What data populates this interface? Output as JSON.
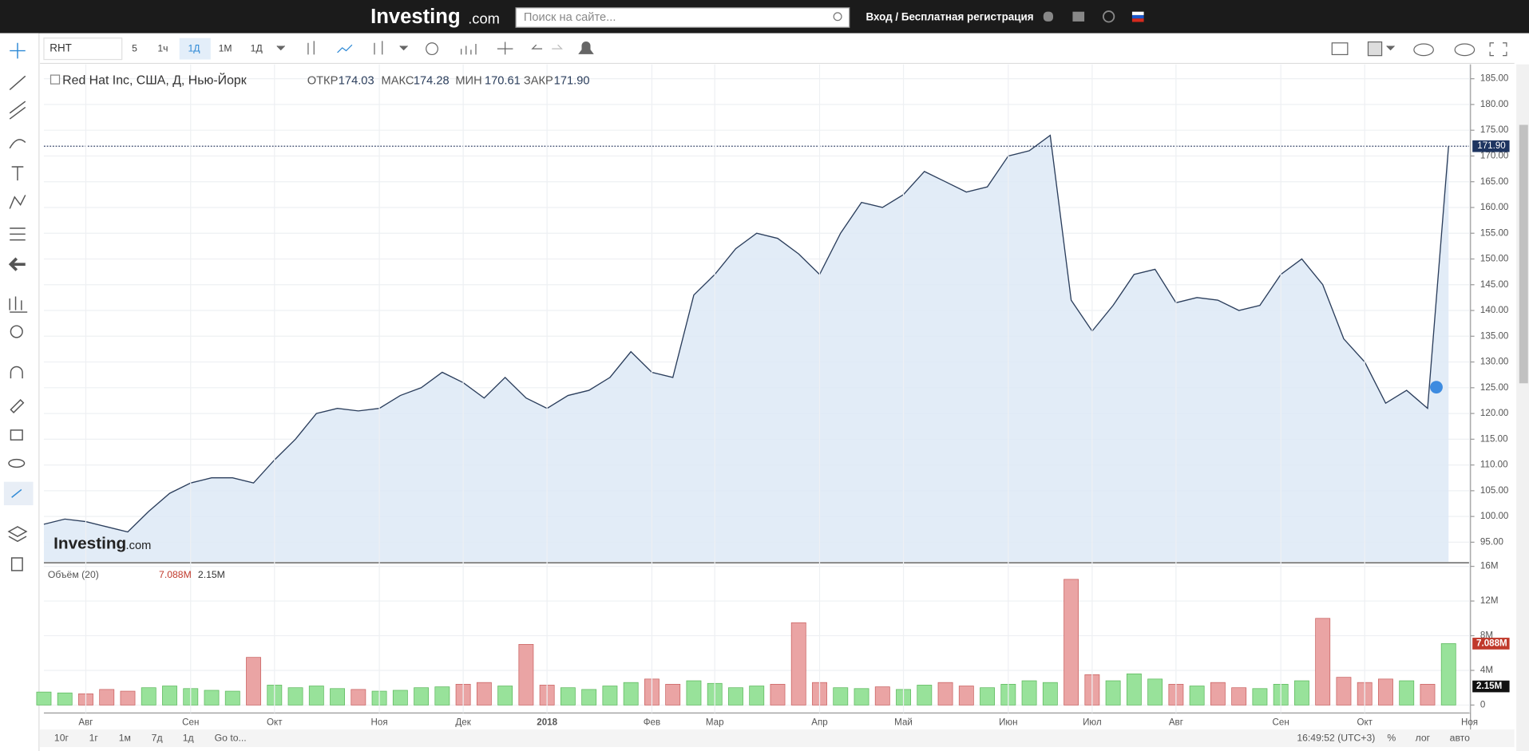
{
  "ui": {
    "header": {
      "logo": "Investing",
      "logo_suffix": ".com",
      "search_placeholder": "Поиск на сайте...",
      "login": "Вход / Бесплатная регистрация"
    },
    "toolbar": {
      "symbol": "RHT",
      "intervals": [
        "5",
        "1ч",
        "1Д",
        "1М",
        "1Д"
      ]
    },
    "bottom_bar": {
      "ranges": [
        "10г",
        "1г",
        "1м",
        "7д",
        "1д"
      ],
      "goto": "Go to...",
      "time": "16:49:52 (UTC+3)",
      "options": [
        "%",
        "лог",
        "авто"
      ]
    },
    "watermark": {
      "logo": "Investing",
      "suffix": ".com"
    }
  },
  "chart_data": [
    {
      "type": "area",
      "title": "Red Hat Inc, США, Д, Нью-Йорк",
      "color": "#2b3e5c",
      "fill": "#dde9f6",
      "ohlc": [
        {
          "name": "ОТКР",
          "value": 174.03
        },
        {
          "name": "МАКС",
          "value": 174.28
        },
        {
          "name": "МИН",
          "value": 170.61
        },
        {
          "name": "ЗАКР",
          "value": 171.9,
          "label": "171.90"
        }
      ],
      "categories": [
        null,
        null,
        "Авг",
        null,
        null,
        null,
        null,
        "Сен",
        null,
        null,
        null,
        "Окт",
        null,
        null,
        null,
        null,
        "Ноя",
        null,
        null,
        null,
        "Дек",
        null,
        null,
        null,
        "2018",
        null,
        null,
        null,
        null,
        "Фев",
        null,
        null,
        "Мар",
        null,
        null,
        null,
        null,
        "Апр",
        null,
        null,
        null,
        "Май",
        null,
        null,
        null,
        null,
        "Июн",
        null,
        null,
        null,
        "Июл",
        null,
        null,
        null,
        "Авг",
        null,
        null,
        null,
        null,
        "Сен",
        null,
        null,
        null,
        "Окт",
        null,
        null,
        null,
        null,
        "Ноя"
      ],
      "values": [
        98.5,
        99.5,
        99,
        98,
        97,
        101,
        104.5,
        106.5,
        107.5,
        107.5,
        106.5,
        111,
        115,
        120,
        121,
        120.5,
        121,
        123.5,
        125,
        128,
        126,
        123,
        127,
        123,
        121,
        123.5,
        124.5,
        127,
        132,
        128,
        127,
        143,
        147,
        152,
        155,
        154,
        151,
        147,
        155,
        161,
        160,
        162.5,
        167,
        165,
        163,
        164,
        170,
        171,
        174,
        142,
        136,
        141,
        147,
        148,
        141.5,
        142.5,
        142,
        140,
        141,
        147,
        150,
        145,
        134.5,
        130,
        122,
        124.5,
        121,
        171.9,
        null
      ],
      "ylim": [
        91.2,
        187.6
      ],
      "yticks": [
        {
          "value": 95,
          "label": "95.00"
        },
        {
          "value": 100,
          "label": "100.00"
        },
        {
          "value": 105,
          "label": "105.00"
        },
        {
          "value": 110,
          "label": "110.00"
        },
        {
          "value": 115,
          "label": "115.00"
        },
        {
          "value": 120,
          "label": "120.00"
        },
        {
          "value": 125,
          "label": "125.00"
        },
        {
          "value": 130,
          "label": "130.00"
        },
        {
          "value": 135,
          "label": "135.00"
        },
        {
          "value": 140,
          "label": "140.00"
        },
        {
          "value": 145,
          "label": "145.00"
        },
        {
          "value": 150,
          "label": "150.00"
        },
        {
          "value": 155,
          "label": "155.00"
        },
        {
          "value": 160,
          "label": "160.00"
        },
        {
          "value": 165,
          "label": "165.00"
        },
        {
          "value": 170,
          "label": "170.00"
        },
        {
          "value": 175,
          "label": "175.00"
        },
        {
          "value": 180,
          "label": "180.00"
        },
        {
          "value": 185,
          "label": "185.00"
        }
      ],
      "grid": true
    },
    {
      "type": "bar",
      "title": "Объём (20)",
      "up_color": "#98e29a",
      "down_color": "#eaa4a4",
      "volume_last": {
        "value": 7088000,
        "label": "7.088M"
      },
      "ma_last": {
        "value": 2150000,
        "label": "2.15M"
      },
      "values": [
        1500000,
        1400000,
        1300000,
        1800000,
        1600000,
        2000000,
        2200000,
        1900000,
        1700000,
        1600000,
        5500000,
        2300000,
        2000000,
        2200000,
        1900000,
        1800000,
        1600000,
        1700000,
        2000000,
        2100000,
        2400000,
        2600000,
        2200000,
        7000000,
        2300000,
        2000000,
        1800000,
        2200000,
        2600000,
        3000000,
        2400000,
        2800000,
        2500000,
        2000000,
        2200000,
        2400000,
        9500000,
        2600000,
        2000000,
        1900000,
        2100000,
        1800000,
        2300000,
        2600000,
        2200000,
        2000000,
        2400000,
        2800000,
        2600000,
        14500000,
        3500000,
        2800000,
        3600000,
        3000000,
        2400000,
        2200000,
        2600000,
        2000000,
        1900000,
        2400000,
        2800000,
        10000000,
        3200000,
        2600000,
        3000000,
        2800000,
        2400000,
        7088000,
        null
      ],
      "ylim": [
        -800000,
        16300000
      ],
      "yticks": [
        {
          "value": 0,
          "label": "0"
        },
        {
          "value": 4000000,
          "label": "4M"
        },
        {
          "value": 8000000,
          "label": "8M"
        },
        {
          "value": 12000000,
          "label": "12M"
        },
        {
          "value": 16000000,
          "label": "16M"
        }
      ],
      "grid": true
    }
  ]
}
